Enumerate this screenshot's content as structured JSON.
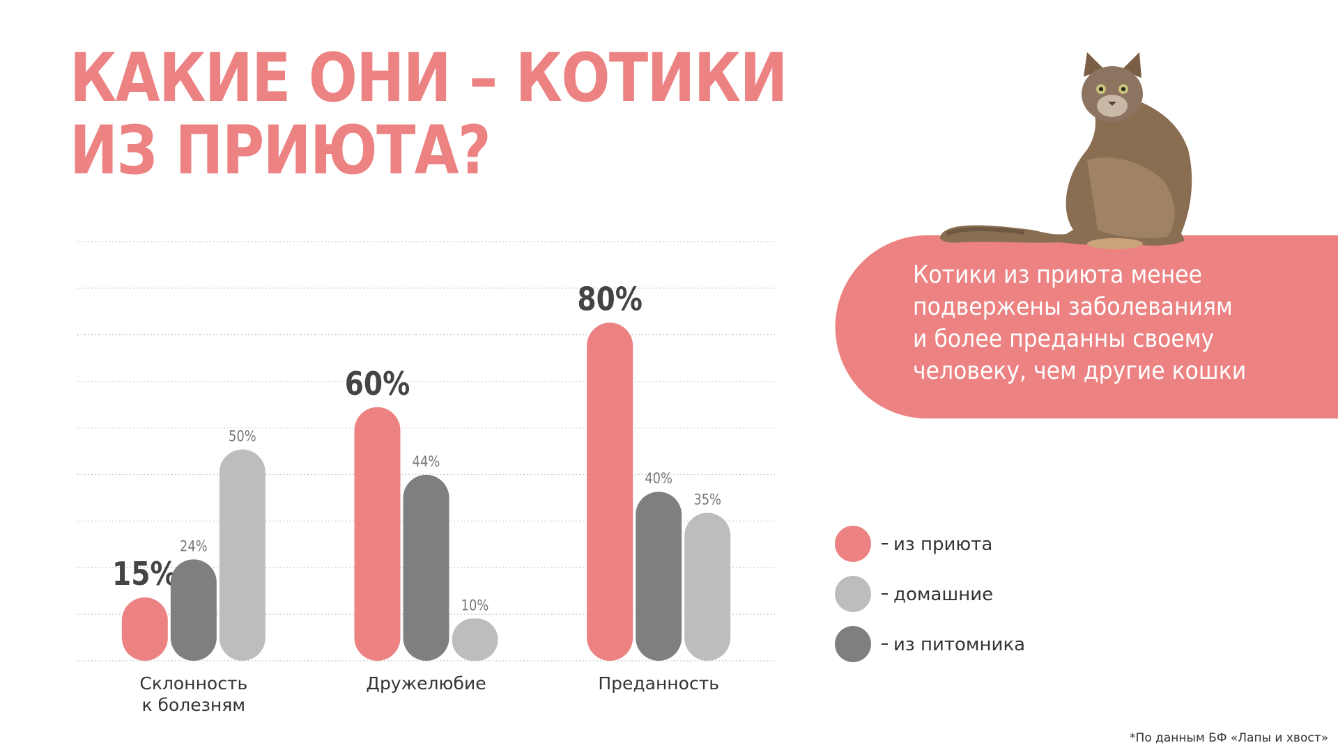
{
  "chart_data": {
    "type": "bar",
    "title": "КАКИЕ ОНИ – КОТИКИ\nИЗ ПРИЮТА?",
    "categories": [
      "Склонность\nк болезням",
      "Дружелюбие",
      "Преданность"
    ],
    "series": [
      {
        "name": "из приюта",
        "color": "#ec8282",
        "values": [
          15,
          60,
          80
        ],
        "value_labels": [
          "15%",
          "60%",
          "80%"
        ]
      },
      {
        "name": "домашние",
        "color": "#bdbdbd",
        "values": [
          50,
          10,
          35
        ],
        "value_labels": [
          "50%",
          "10%",
          "35%"
        ]
      },
      {
        "name": "из питомника",
        "color": "#7f7f7f",
        "values": [
          24,
          44,
          40
        ],
        "value_labels": [
          "24%",
          "44%",
          "40%"
        ]
      }
    ],
    "ylim": [
      0,
      100
    ],
    "grid": true,
    "legend": "right",
    "annotation": "Котики из приюта менее\nподвержены заболеваниям\nи более преданны своему\nчеловеку, чем другие кошки",
    "footnote": "*По данным БФ «Лапы и хвост»"
  }
}
